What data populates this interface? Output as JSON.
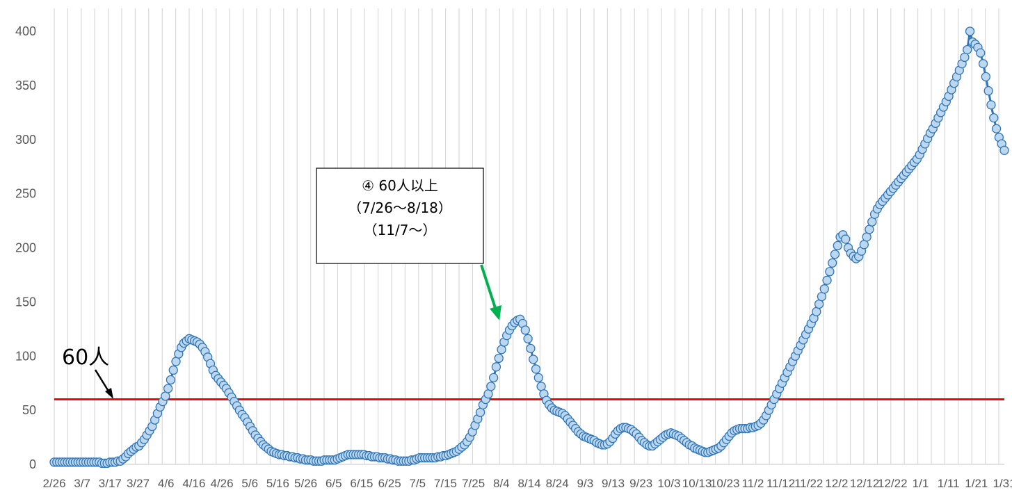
{
  "chart_data": {
    "type": "line",
    "title": "",
    "xlabel": "",
    "ylabel": "",
    "ylim": [
      0,
      400
    ],
    "y_ticks": [
      0,
      50,
      100,
      150,
      200,
      250,
      300,
      350,
      400
    ],
    "x_tick_labels": [
      "2/26",
      "3/7",
      "3/17",
      "3/27",
      "4/6",
      "4/16",
      "4/26",
      "5/6",
      "5/16",
      "5/26",
      "6/5",
      "6/15",
      "6/25",
      "7/5",
      "7/15",
      "7/25",
      "8/4",
      "8/14",
      "8/24",
      "9/3",
      "9/13",
      "9/23",
      "10/3",
      "10/13",
      "10/23",
      "11/2",
      "11/12",
      "11/22",
      "12/2",
      "12/12",
      "12/22",
      "1/1",
      "1/11",
      "1/21",
      "1/31"
    ],
    "grid": "vertical",
    "series": [
      {
        "color": "#2E75B6",
        "marker_fill": "#BDD7EE",
        "values": [
          2,
          2,
          2,
          2,
          2,
          2,
          2,
          2,
          2,
          2,
          2,
          2,
          2,
          2,
          2,
          2,
          2,
          2,
          1,
          1,
          1,
          2,
          2,
          2,
          3,
          3,
          5,
          7,
          10,
          12,
          14,
          16,
          17,
          20,
          23,
          27,
          31,
          35,
          41,
          47,
          53,
          58,
          63,
          70,
          78,
          87,
          95,
          102,
          108,
          112,
          114,
          116,
          115,
          114,
          113,
          111,
          108,
          104,
          99,
          93,
          87,
          82,
          79,
          76,
          73,
          70,
          66,
          62,
          58,
          54,
          50,
          46,
          43,
          39,
          35,
          31,
          27,
          24,
          21,
          18,
          16,
          14,
          12,
          11,
          10,
          9,
          9,
          8,
          8,
          7,
          7,
          6,
          6,
          5,
          5,
          4,
          4,
          4,
          3,
          3,
          3,
          3,
          4,
          4,
          4,
          4,
          4,
          5,
          6,
          7,
          8,
          9,
          9,
          9,
          9,
          9,
          9,
          9,
          8,
          8,
          7,
          7,
          7,
          6,
          6,
          6,
          5,
          5,
          4,
          4,
          3,
          3,
          3,
          3,
          3,
          4,
          4,
          5,
          6,
          6,
          6,
          6,
          6,
          6,
          6,
          7,
          7,
          8,
          8,
          9,
          10,
          11,
          12,
          14,
          16,
          18,
          21,
          25,
          30,
          36,
          42,
          48,
          55,
          60,
          65,
          72,
          80,
          90,
          98,
          106,
          113,
          119,
          124,
          128,
          131,
          133,
          134,
          130,
          124,
          116,
          107,
          97,
          88,
          80,
          72,
          65,
          59,
          55,
          52,
          50,
          49,
          48,
          47,
          45,
          42,
          39,
          36,
          33,
          30,
          28,
          26,
          25,
          24,
          23,
          22,
          20,
          19,
          18,
          18,
          19,
          21,
          24,
          28,
          31,
          33,
          34,
          34,
          33,
          32,
          30,
          28,
          25,
          22,
          20,
          18,
          17,
          17,
          19,
          21,
          23,
          25,
          27,
          28,
          29,
          28,
          27,
          26,
          24,
          22,
          20,
          18,
          17,
          15,
          14,
          13,
          12,
          11,
          11,
          12,
          13,
          14,
          15,
          17,
          20,
          23,
          26,
          29,
          31,
          32,
          33,
          33,
          33,
          33,
          34,
          34,
          35,
          36,
          38,
          41,
          45,
          50,
          55,
          60,
          65,
          70,
          75,
          80,
          85,
          90,
          95,
          100,
          105,
          110,
          115,
          120,
          125,
          130,
          135,
          141,
          148,
          155,
          162,
          170,
          178,
          186,
          194,
          202,
          210,
          212,
          208,
          200,
          195,
          192,
          190,
          192,
          197,
          203,
          210,
          217,
          224,
          231,
          236,
          240,
          243,
          246,
          249,
          252,
          255,
          258,
          261,
          264,
          267,
          270,
          273,
          276,
          279,
          282,
          286,
          291,
          296,
          301,
          306,
          310,
          315,
          320,
          325,
          330,
          335,
          340,
          346,
          352,
          358,
          364,
          370,
          376,
          383,
          400,
          390,
          388,
          385,
          380,
          370,
          358,
          345,
          332,
          320,
          310,
          302,
          296,
          290
        ]
      }
    ],
    "reference_line": {
      "value": 60,
      "color": "#FF0000",
      "label": "60人"
    },
    "annotation": {
      "line1": "④ 60人以上",
      "line2": "（7/26～8/18）",
      "line3": "（11/7～）",
      "arrow_color": "#00B050"
    }
  }
}
